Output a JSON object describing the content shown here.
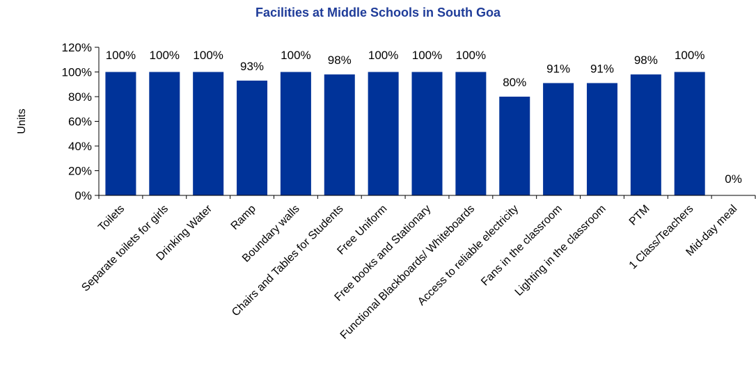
{
  "chart_data": {
    "type": "bar",
    "title": "Facilities at Middle Schools in South Goa",
    "xlabel": "",
    "ylabel": "Units",
    "categories": [
      "Toilets",
      "Separate toilets for girls",
      "Drinking Water",
      "Ramp",
      "Boundary walls",
      "Chairs and Tables for Students",
      "Free Uniform",
      "Free books and Stationary",
      "Functional Blackboards/ Whiteboards",
      "Access to reliable electricity",
      "Fans in the classroom",
      "Lighting in the classroom",
      "PTM",
      "1 Class/Teachers",
      "Mid-day meal"
    ],
    "values": [
      100,
      100,
      100,
      93,
      100,
      98,
      100,
      100,
      100,
      80,
      91,
      91,
      98,
      100,
      0
    ],
    "data_labels": [
      "100%",
      "100%",
      "100%",
      "93%",
      "100%",
      "98%",
      "100%",
      "100%",
      "100%",
      "80%",
      "91%",
      "91%",
      "98%",
      "100%",
      "0%"
    ],
    "ylim": [
      0,
      120
    ],
    "yticks": [
      0,
      20,
      40,
      60,
      80,
      100,
      120
    ],
    "ytick_labels": [
      "0%",
      "20%",
      "40%",
      "60%",
      "80%",
      "100%",
      "120%"
    ],
    "grid": false,
    "legend": "none",
    "colors": {
      "bar": "#003399",
      "title": "#1F3C99",
      "axis": "#000000"
    }
  }
}
